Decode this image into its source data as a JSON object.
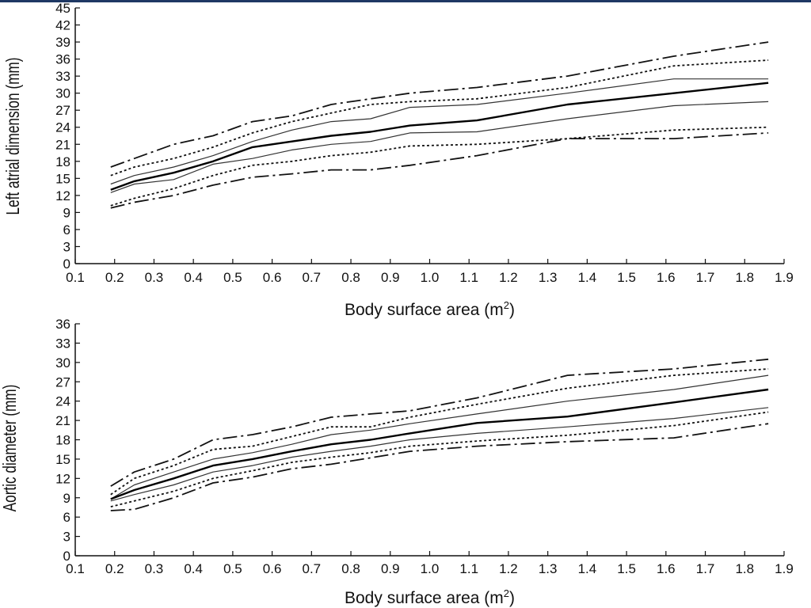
{
  "chart_data": [
    {
      "type": "line",
      "title": "",
      "xlabel": "Body surface area (m",
      "xlabel_sup": "2",
      "xlabel_close": ")",
      "ylabel": "Left atrial dimension (mm)",
      "xlim": [
        0.1,
        1.9
      ],
      "ylim": [
        0,
        45
      ],
      "x_ticks": [
        "0.1",
        "0.2",
        "0.3",
        "0.4",
        "0.5",
        "0.6",
        "0.7",
        "0.8",
        "0.9",
        "1.0",
        "1.1",
        "1.2",
        "1.3",
        "1.4",
        "1.5",
        "1.6",
        "1.7",
        "1.8",
        "1.9"
      ],
      "y_ticks": [
        "0",
        "3",
        "6",
        "9",
        "12",
        "15",
        "18",
        "21",
        "24",
        "27",
        "30",
        "33",
        "36",
        "39",
        "42",
        "45"
      ],
      "grid": false,
      "series": [
        {
          "style": "dashdot",
          "x": [
            0.19,
            0.25,
            0.35,
            0.45,
            0.55,
            0.65,
            0.75,
            0.85,
            0.95,
            1.12,
            1.35,
            1.62,
            1.86
          ],
          "y": [
            17,
            18.5,
            21,
            22.5,
            25,
            26,
            28,
            29,
            30,
            31,
            33,
            36.5,
            39
          ]
        },
        {
          "style": "dotted",
          "x": [
            0.19,
            0.25,
            0.35,
            0.45,
            0.55,
            0.65,
            0.75,
            0.85,
            0.95,
            1.12,
            1.35,
            1.62,
            1.86
          ],
          "y": [
            15.5,
            17,
            18.5,
            20.5,
            23,
            25,
            26.5,
            28,
            28.5,
            29,
            31,
            34.8,
            35.8
          ]
        },
        {
          "style": "thin",
          "x": [
            0.19,
            0.25,
            0.35,
            0.45,
            0.55,
            0.65,
            0.75,
            0.85,
            0.95,
            1.12,
            1.35,
            1.62,
            1.86
          ],
          "y": [
            14,
            15.5,
            17,
            19,
            21.5,
            23.5,
            25,
            25.5,
            27.5,
            28,
            30,
            32.5,
            32.5
          ]
        },
        {
          "style": "bold",
          "x": [
            0.19,
            0.25,
            0.35,
            0.45,
            0.55,
            0.65,
            0.75,
            0.85,
            0.95,
            1.12,
            1.35,
            1.62,
            1.86
          ],
          "y": [
            13,
            14.5,
            16,
            18,
            20.5,
            21.5,
            22.5,
            23.2,
            24.3,
            25.2,
            28,
            30,
            31.8
          ]
        },
        {
          "style": "thin",
          "x": [
            0.19,
            0.25,
            0.35,
            0.45,
            0.55,
            0.65,
            0.75,
            0.85,
            0.95,
            1.12,
            1.35,
            1.62,
            1.86
          ],
          "y": [
            12.5,
            14,
            14.8,
            17.5,
            18.5,
            20,
            21,
            21.5,
            23,
            23.2,
            25.5,
            27.8,
            28.5
          ]
        },
        {
          "style": "dotted",
          "x": [
            0.19,
            0.25,
            0.35,
            0.45,
            0.55,
            0.65,
            0.75,
            0.85,
            0.95,
            1.12,
            1.35,
            1.62,
            1.86
          ],
          "y": [
            10.2,
            11.5,
            13.2,
            15.5,
            17.3,
            18,
            19,
            19.6,
            20.7,
            21,
            22,
            23.5,
            24
          ]
        },
        {
          "style": "dashdot",
          "x": [
            0.19,
            0.25,
            0.35,
            0.45,
            0.55,
            0.65,
            0.75,
            0.85,
            0.95,
            1.12,
            1.35,
            1.62,
            1.86
          ],
          "y": [
            9.8,
            10.8,
            12,
            13.8,
            15.2,
            15.8,
            16.5,
            16.5,
            17.3,
            19,
            22,
            22,
            23
          ]
        }
      ]
    },
    {
      "type": "line",
      "title": "",
      "xlabel": "Body surface area (m",
      "xlabel_sup": "2",
      "xlabel_close": ")",
      "ylabel": "Aortic diameter (mm)",
      "xlim": [
        0.1,
        1.9
      ],
      "ylim": [
        0,
        36
      ],
      "x_ticks": [
        "0.1",
        "0.2",
        "0.3",
        "0.4",
        "0.5",
        "0.6",
        "0.7",
        "0.8",
        "0.9",
        "1.0",
        "1.1",
        "1.2",
        "1.3",
        "1.4",
        "1.5",
        "1.6",
        "1.7",
        "1.8",
        "1.9"
      ],
      "y_ticks": [
        "0",
        "3",
        "6",
        "9",
        "12",
        "15",
        "18",
        "21",
        "24",
        "27",
        "30",
        "33",
        "36"
      ],
      "grid": false,
      "series": [
        {
          "style": "dashdot",
          "x": [
            0.19,
            0.25,
            0.35,
            0.45,
            0.55,
            0.65,
            0.75,
            0.85,
            0.95,
            1.12,
            1.35,
            1.62,
            1.86
          ],
          "y": [
            10.8,
            13,
            15,
            18,
            18.8,
            20,
            21.5,
            22,
            22.5,
            24.5,
            28,
            29,
            30.5
          ]
        },
        {
          "style": "dotted",
          "x": [
            0.19,
            0.25,
            0.35,
            0.45,
            0.55,
            0.65,
            0.75,
            0.85,
            0.95,
            1.12,
            1.35,
            1.62,
            1.86
          ],
          "y": [
            9.5,
            12,
            14,
            16.5,
            17,
            18.5,
            20,
            20,
            21.5,
            23.5,
            26,
            28,
            29
          ]
        },
        {
          "style": "thin",
          "x": [
            0.19,
            0.25,
            0.35,
            0.45,
            0.55,
            0.65,
            0.75,
            0.85,
            0.95,
            1.12,
            1.35,
            1.62,
            1.86
          ],
          "y": [
            8.8,
            11,
            13,
            15,
            16,
            17.3,
            18.8,
            19.5,
            20.5,
            22,
            24,
            25.8,
            28
          ]
        },
        {
          "style": "bold",
          "x": [
            0.19,
            0.25,
            0.35,
            0.45,
            0.55,
            0.65,
            0.75,
            0.85,
            0.95,
            1.12,
            1.35,
            1.62,
            1.86
          ],
          "y": [
            8.8,
            10.2,
            12,
            14,
            15,
            16.2,
            17.3,
            18,
            19,
            20.6,
            21.6,
            23.8,
            25.8
          ]
        },
        {
          "style": "thin",
          "x": [
            0.19,
            0.25,
            0.35,
            0.45,
            0.55,
            0.65,
            0.75,
            0.85,
            0.95,
            1.12,
            1.35,
            1.62,
            1.86
          ],
          "y": [
            8.5,
            9.5,
            11,
            13,
            14,
            15.3,
            16.2,
            17,
            18,
            19,
            20,
            21.3,
            23
          ]
        },
        {
          "style": "dotted",
          "x": [
            0.19,
            0.25,
            0.35,
            0.45,
            0.55,
            0.65,
            0.75,
            0.85,
            0.95,
            1.12,
            1.35,
            1.62,
            1.86
          ],
          "y": [
            7.6,
            8.5,
            10,
            12,
            13.2,
            14.5,
            15.3,
            16,
            17,
            17.8,
            18.7,
            20.2,
            22.3
          ]
        },
        {
          "style": "dashdot",
          "x": [
            0.19,
            0.25,
            0.35,
            0.45,
            0.55,
            0.65,
            0.75,
            0.85,
            0.95,
            1.12,
            1.35,
            1.62,
            1.86
          ],
          "y": [
            7,
            7.2,
            9,
            11.3,
            12.2,
            13.5,
            14.2,
            15.2,
            16.2,
            17,
            17.7,
            18.3,
            20.5
          ]
        }
      ]
    }
  ]
}
